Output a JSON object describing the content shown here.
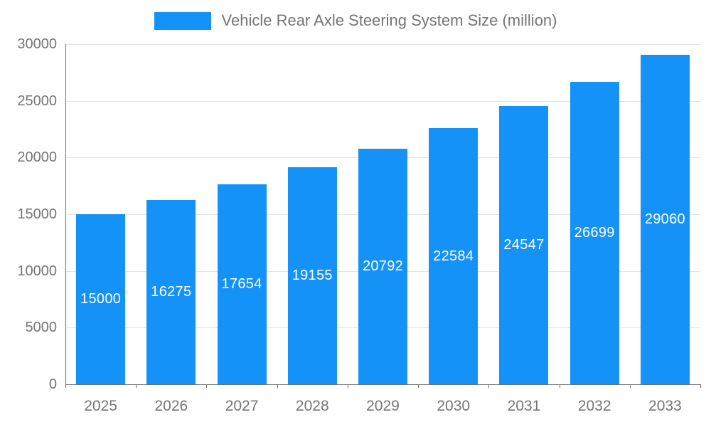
{
  "chart_data": {
    "type": "bar",
    "title": "Vehicle Rear Axle Steering System Size (million)",
    "legend": [
      "Vehicle Rear Axle Steering System Size (million)"
    ],
    "legend_position": "top",
    "categories": [
      "2025",
      "2026",
      "2027",
      "2028",
      "2029",
      "2030",
      "2031",
      "2032",
      "2033"
    ],
    "values": [
      15000,
      16275,
      17654,
      19155,
      20792,
      22584,
      24547,
      26699,
      29060
    ],
    "xlabel": "",
    "ylabel": "",
    "ylim": [
      0,
      30000
    ],
    "ytick_interval": 5000,
    "yticks": [
      0,
      5000,
      10000,
      15000,
      20000,
      25000,
      30000
    ],
    "grid": true,
    "bar_color": "#1592f7",
    "bar_label_color": "#ffffff",
    "axis_text_color": "#757575",
    "grid_color": "#e3e3e3",
    "axis_line_color": "#6e6e6e"
  }
}
